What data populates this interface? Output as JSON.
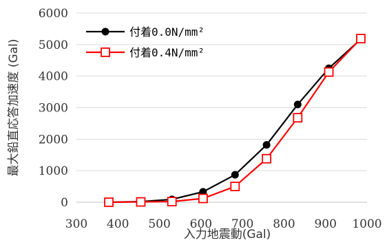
{
  "chart_data": {
    "type": "line",
    "xlabel": "入力地震動(Gal)",
    "ylabel": "最大鉛直応答加速度 (Gal)",
    "xlim": [
      300,
      1000
    ],
    "ylim": [
      0,
      6000
    ],
    "xticks": [
      300,
      400,
      500,
      600,
      700,
      800,
      900,
      1000
    ],
    "yticks": [
      0,
      1000,
      2000,
      3000,
      4000,
      5000,
      6000
    ],
    "grid": "horizontal",
    "legend_position": "top-left",
    "series": [
      {
        "name": "付着0.0N/mm²",
        "color": "#000000",
        "marker": "filled-circle",
        "x": [
          378,
          455,
          530,
          605,
          682,
          758,
          833,
          908,
          985
        ],
        "y": [
          0,
          20,
          90,
          330,
          870,
          1820,
          3100,
          4250,
          5170
        ]
      },
      {
        "name": "付着0.4N/mm²",
        "color": "#ff0000",
        "marker": "open-square",
        "x": [
          378,
          455,
          530,
          605,
          682,
          758,
          833,
          908,
          985
        ],
        "y": [
          0,
          10,
          20,
          120,
          500,
          1380,
          2680,
          4130,
          5190
        ]
      }
    ]
  }
}
